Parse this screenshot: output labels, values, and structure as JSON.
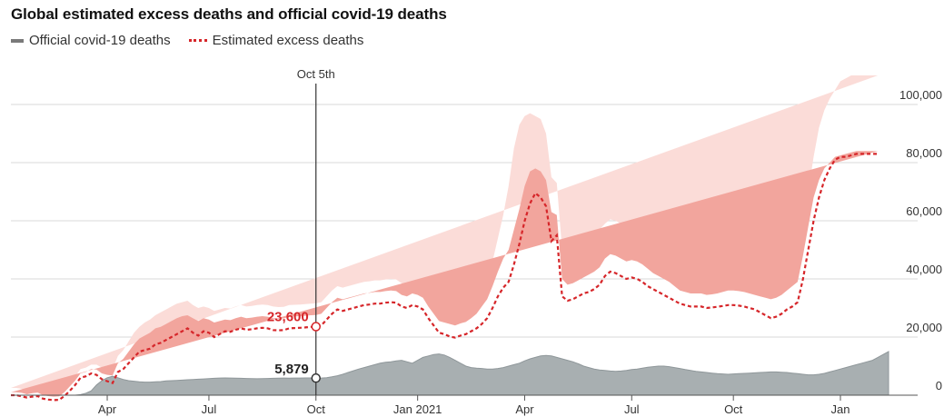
{
  "chart_data": {
    "type": "area",
    "title": "Global estimated excess deaths and official covid-19 deaths",
    "legend": {
      "position": "top-left"
    },
    "series": [
      {
        "name": "Official covid-19 deaths",
        "color": "#9ca4a6",
        "style": "filled-area"
      },
      {
        "name": "Estimated excess deaths",
        "color": "#d6262a",
        "style": "dotted-line-with-bands"
      }
    ],
    "x_ticks": [
      "Apr",
      "Jul",
      "Oct",
      "Jan 2021",
      "Apr",
      "Jul",
      "Oct",
      "Jan"
    ],
    "y_ticks": [
      "0",
      "20,000",
      "40,000",
      "60,000",
      "80,000",
      "100,000"
    ],
    "ylim": [
      0,
      105000
    ],
    "grid": true,
    "annotation": {
      "label": "Oct 5th",
      "excess_label": "23,600",
      "official_label": "5,879"
    },
    "weeks": [
      0,
      1,
      2,
      3,
      4,
      5,
      6,
      7,
      8,
      9,
      10,
      11,
      12,
      13,
      14,
      15,
      16,
      17,
      18,
      19,
      20,
      21,
      22,
      23,
      24,
      25,
      26,
      27,
      28,
      29,
      30,
      31,
      32,
      33,
      34,
      35,
      36,
      37,
      38,
      39,
      40,
      41,
      42,
      43,
      44,
      45,
      46,
      47,
      48,
      49,
      50,
      51,
      52,
      53,
      54,
      55,
      56,
      57,
      58,
      59,
      60,
      61,
      62,
      63,
      64,
      65,
      66,
      67,
      68,
      69,
      70,
      71,
      72,
      73,
      74,
      75,
      76,
      77,
      78,
      79,
      80,
      81,
      82,
      83,
      84,
      85,
      86,
      87,
      88,
      89,
      90,
      91,
      92,
      93,
      94,
      95,
      96,
      97,
      98,
      99,
      100,
      101,
      102,
      103,
      104,
      105,
      106,
      107,
      108,
      109,
      110,
      111,
      112,
      113,
      114,
      115,
      116,
      117,
      118,
      119,
      120,
      121,
      122,
      123,
      124,
      125,
      126,
      127,
      128,
      129,
      130,
      131,
      132,
      133,
      134,
      135,
      136,
      137,
      138,
      139,
      140,
      141,
      142,
      143,
      144,
      145,
      146,
      147,
      148,
      149,
      150,
      151,
      152,
      153,
      154,
      155,
      156,
      157,
      158,
      159,
      160,
      161,
      162,
      163,
      164
    ],
    "tick_weeks": [
      18,
      37,
      57,
      76,
      96,
      116,
      135,
      155
    ],
    "oct5_week": 57,
    "official": [
      0,
      0,
      0,
      0,
      0,
      0,
      0,
      0,
      0,
      0,
      0,
      0,
      0,
      200,
      700,
      1500,
      3500,
      5000,
      6000,
      6500,
      6000,
      5400,
      5000,
      4800,
      4600,
      4500,
      4500,
      4600,
      4700,
      4900,
      5000,
      5100,
      5200,
      5300,
      5400,
      5500,
      5600,
      5700,
      5800,
      5900,
      5950,
      5900,
      5850,
      5800,
      5750,
      5700,
      5650,
      5700,
      5750,
      5800,
      5850,
      5900,
      5879,
      5900,
      5900,
      5950,
      5950,
      5879,
      5900,
      6000,
      6300,
      6700,
      7200,
      7800,
      8400,
      9000,
      9500,
      10000,
      10500,
      11000,
      11300,
      11500,
      11800,
      12000,
      11500,
      11000,
      12000,
      13000,
      13500,
      14000,
      14200,
      13800,
      13000,
      12000,
      11000,
      10000,
      9500,
      9300,
      9200,
      9000,
      9000,
      9200,
      9500,
      10000,
      10500,
      11000,
      11800,
      12500,
      13000,
      13500,
      13700,
      13500,
      13000,
      12500,
      12000,
      11500,
      10800,
      10000,
      9500,
      9000,
      8700,
      8500,
      8300,
      8200,
      8300,
      8500,
      8800,
      9000,
      9300,
      9600,
      9800,
      10000,
      10000,
      9800,
      9500,
      9200,
      8800,
      8500,
      8200,
      8000,
      7800,
      7600,
      7400,
      7300,
      7200,
      7300,
      7400,
      7500,
      7600,
      7700,
      7800,
      7900,
      8000,
      8000,
      7900,
      7800,
      7600,
      7400,
      7200,
      7000,
      7000,
      7200,
      7500,
      8000,
      8500,
      9000,
      9500,
      10000,
      10500,
      11000,
      11500,
      12000,
      13000,
      14000,
      15000,
      16000
    ],
    "excess_mid": [
      0,
      0,
      -400,
      -800,
      -500,
      -300,
      -1200,
      -1500,
      -1700,
      -1600,
      -300,
      1500,
      3500,
      6000,
      6500,
      7500,
      7000,
      5500,
      4800,
      4200,
      8000,
      9000,
      11000,
      13000,
      15000,
      15500,
      16000,
      17500,
      18000,
      19000,
      20000,
      21000,
      22000,
      23000,
      21500,
      20500,
      22000,
      21500,
      20000,
      21000,
      22000,
      21800,
      22500,
      23000,
      22500,
      22700,
      23000,
      23200,
      23000,
      22400,
      22300,
      22400,
      23000,
      23100,
      23200,
      23300,
      23500,
      23600,
      24000,
      26000,
      28000,
      29500,
      29000,
      29500,
      30000,
      30500,
      31000,
      31200,
      31500,
      31500,
      31800,
      32000,
      31800,
      30500,
      30000,
      31000,
      30500,
      29500,
      26500,
      24000,
      21500,
      21000,
      20200,
      19800,
      20500,
      21000,
      22000,
      23000,
      24500,
      26500,
      30000,
      34000,
      37000,
      39000,
      45000,
      52000,
      60000,
      66000,
      69500,
      68000,
      65000,
      53000,
      55000,
      34000,
      32500,
      33000,
      34000,
      35000,
      35500,
      36500,
      38000,
      41000,
      42500,
      42000,
      41000,
      40000,
      40500,
      40000,
      39000,
      37500,
      36500,
      35500,
      34500,
      33500,
      32500,
      31500,
      31000,
      30500,
      30500,
      30500,
      30000,
      30200,
      30400,
      30700,
      31000,
      31000,
      30800,
      30500,
      30000,
      29500,
      28500,
      27500,
      26500,
      27000,
      28000,
      29500,
      30500,
      32000,
      40000,
      50000,
      60000,
      68000,
      74000,
      78000,
      81000,
      82000,
      82000,
      82500,
      83000,
      83000,
      83000,
      83000,
      83000
    ],
    "inner_upper": [
      1000,
      1000,
      800,
      300,
      700,
      900,
      0,
      -300,
      -500,
      -400,
      1000,
      3000,
      5000,
      7500,
      8000,
      9000,
      8800,
      7500,
      7000,
      6800,
      11000,
      12500,
      15000,
      17500,
      19500,
      20500,
      21500,
      23000,
      23500,
      24500,
      25500,
      26500,
      27200,
      27500,
      26500,
      25500,
      26500,
      26000,
      25000,
      25500,
      26000,
      25800,
      26500,
      27000,
      26500,
      26700,
      27000,
      27200,
      27000,
      26500,
      26300,
      26400,
      27000,
      27100,
      27200,
      27300,
      27500,
      27600,
      28000,
      30000,
      32000,
      33500,
      33000,
      33500,
      34000,
      34500,
      35000,
      35200,
      35500,
      35500,
      35800,
      36000,
      35800,
      34500,
      34000,
      35000,
      34500,
      33500,
      30500,
      28000,
      25500,
      25000,
      24500,
      24000,
      24700,
      25200,
      26500,
      28000,
      30500,
      33000,
      37500,
      42500,
      47000,
      50000,
      57000,
      64000,
      72000,
      77000,
      78000,
      77000,
      74000,
      63000,
      62000,
      40000,
      38000,
      38500,
      39500,
      40500,
      41500,
      42500,
      44000,
      47000,
      48500,
      48000,
      47000,
      46000,
      46500,
      46000,
      45000,
      43500,
      42000,
      41000,
      40000,
      39000,
      37500,
      36000,
      35500,
      35000,
      35000,
      35000,
      34500,
      34700,
      35000,
      35500,
      36000,
      36000,
      35800,
      35500,
      35000,
      34500,
      34000,
      33500,
      33000,
      33500,
      34500,
      36000,
      37500,
      39000,
      48000,
      58000,
      68000,
      74000,
      78000,
      80000,
      82000,
      82500,
      83000,
      83500,
      84000,
      84000,
      84000,
      84000,
      84000
    ],
    "inner_lower": [
      -1000,
      -1000,
      -1600,
      -1900,
      -1700,
      -1500,
      -2400,
      -2700,
      -2900,
      -2800,
      -1600,
      0,
      2000,
      4500,
      5000,
      6000,
      5200,
      3500,
      2600,
      1600,
      5000,
      5500,
      7000,
      8500,
      10500,
      10500,
      10500,
      12000,
      12500,
      13500,
      14500,
      15500,
      16800,
      18500,
      16500,
      15500,
      17500,
      17000,
      15000,
      16500,
      18000,
      17800,
      18500,
      19000,
      18500,
      18700,
      19000,
      19200,
      19000,
      18300,
      18300,
      18400,
      19000,
      19100,
      19200,
      19300,
      19500,
      19600,
      20000,
      22000,
      24000,
      25500,
      25000,
      25500,
      26000,
      26500,
      27000,
      27200,
      27500,
      27500,
      27800,
      28000,
      27800,
      26500,
      26000,
      27000,
      26500,
      25500,
      22500,
      20000,
      17500,
      17000,
      16000,
      15600,
      16300,
      16800,
      17500,
      18000,
      18500,
      20000,
      22500,
      25500,
      27000,
      28000,
      33000,
      40000,
      48000,
      55000,
      61000,
      59000,
      56000,
      43000,
      48000,
      28000,
      27000,
      27500,
      28500,
      29500,
      29500,
      30500,
      32000,
      35000,
      36500,
      36000,
      35000,
      34000,
      34500,
      34000,
      33000,
      31500,
      31000,
      30000,
      29000,
      28000,
      27500,
      27000,
      26500,
      26000,
      26000,
      26000,
      25500,
      25700,
      25800,
      25900,
      26000,
      26000,
      25800,
      25500,
      25000,
      24500,
      23000,
      21500,
      20000,
      20500,
      21500,
      23000,
      23500,
      25000,
      32000,
      38000,
      44000,
      48000,
      51000,
      52000,
      52500,
      53000,
      53000,
      53000,
      53000,
      53000,
      53000,
      53000,
      53000
    ],
    "outer_upper": [
      2500,
      2500,
      2200,
      1500,
      2000,
      2200,
      1200,
      800,
      600,
      700,
      2500,
      4500,
      6500,
      9000,
      9500,
      10500,
      10500,
      9500,
      9000,
      9000,
      13500,
      15500,
      18500,
      21500,
      23500,
      25000,
      26000,
      27500,
      28500,
      29500,
      30500,
      31500,
      32000,
      32500,
      31000,
      30000,
      30500,
      30000,
      29000,
      29500,
      30000,
      29800,
      30500,
      31000,
      30500,
      30700,
      31000,
      31200,
      31000,
      30500,
      30300,
      30400,
      31000,
      31100,
      31200,
      31300,
      31500,
      31600,
      32000,
      34000,
      36000,
      37500,
      37000,
      37500,
      38000,
      38500,
      39000,
      39200,
      39500,
      39500,
      39800,
      40000,
      39800,
      38500,
      38000,
      39000,
      38500,
      37500,
      34500,
      32000,
      29500,
      29000,
      28500,
      28000,
      28700,
      29500,
      31000,
      33000,
      36000,
      40000,
      46000,
      54000,
      62000,
      72000,
      85000,
      93000,
      96000,
      97000,
      96000,
      95000,
      90000,
      75000,
      73000,
      50000,
      47000,
      48000,
      49500,
      51000,
      53000,
      55000,
      57000,
      59000,
      60500,
      60000,
      59000,
      57500,
      57000,
      55500,
      53500,
      51000,
      48500,
      46000,
      44000,
      42000,
      40500,
      39500,
      39000,
      38500,
      38500,
      38500,
      38000,
      38200,
      38500,
      39000,
      39500,
      39500,
      39300,
      39000,
      38500,
      38000,
      38000,
      38500,
      39000,
      39500,
      40500,
      42000,
      44000,
      47000,
      58000,
      70000,
      82000,
      92000,
      98000,
      102000,
      105000,
      108000,
      109000,
      110000,
      110000,
      110000,
      110000,
      110000,
      110000
    ],
    "outer_lower": [
      -2500,
      -2500,
      -3000,
      -3200,
      -3000,
      -2800,
      -3600,
      -3900,
      -4100,
      -4000,
      -3000,
      -1500,
      500,
      3000,
      3500,
      4500,
      3500,
      1500,
      500,
      -500,
      2500,
      2500,
      3500,
      4500,
      6500,
      6000,
      6000,
      7500,
      8000,
      9000,
      10000,
      11000,
      12000,
      13500,
      12000,
      11000,
      13500,
      13000,
      11000,
      12500,
      14000,
      13800,
      14500,
      15000,
      14500,
      14700,
      15000,
      15200,
      15000,
      14300,
      14300,
      14400,
      15000,
      15100,
      15200,
      15300,
      15500,
      15600,
      16000,
      18000,
      20000,
      21500,
      21000,
      21500,
      22000,
      22500,
      23000,
      23200,
      23500,
      23500,
      23800,
      24000,
      23800,
      22500,
      22000,
      23000,
      22500,
      21500,
      18500,
      16000,
      13500,
      13000,
      12000,
      11600,
      12300,
      12800,
      13000,
      13000,
      13000,
      13500,
      15000,
      16500,
      17000,
      17500,
      20000,
      25000,
      32000,
      38000,
      43000,
      42000,
      40000,
      33000,
      36000,
      22000,
      21500,
      22000,
      22500,
      23000,
      22500,
      23000,
      24500,
      27500,
      28500,
      28000,
      27000,
      26000,
      26500,
      26500,
      25500,
      24500,
      24000,
      23500,
      22500,
      21500,
      21500,
      21500,
      21000,
      20500,
      20500,
      20500,
      20000,
      19700,
      19500,
      19300,
      19000,
      19000,
      18800,
      18500,
      18000,
      17500,
      16000,
      15000,
      14000,
      14000,
      15000,
      16000,
      16500,
      17000,
      20000,
      23000,
      25000,
      26500,
      27000,
      27500,
      28000,
      28000,
      28000,
      28000,
      28000,
      28000,
      28000,
      28000,
      28000
    ]
  }
}
